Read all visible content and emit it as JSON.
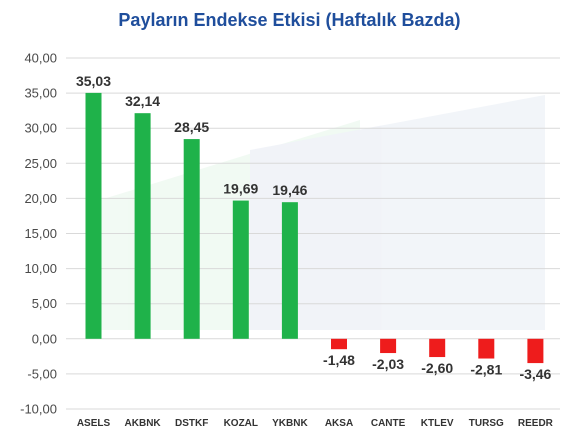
{
  "chart_data": {
    "type": "bar",
    "title": "Payların Endekse Etkisi (Haftalık Bazda)",
    "xlabel": "",
    "ylabel": "",
    "ylim": [
      -10,
      40
    ],
    "yticks": [
      "40,00",
      "35,00",
      "30,00",
      "25,00",
      "20,00",
      "15,00",
      "10,00",
      "5,00",
      "0,00",
      "-5,00",
      "-10,00"
    ],
    "ytick_values": [
      40,
      35,
      30,
      25,
      20,
      15,
      10,
      5,
      0,
      -5,
      -10
    ],
    "grid": true,
    "legend": "none",
    "categories": [
      "ASELS",
      "AKBNK",
      "DSTKF",
      "KOZAL",
      "YKBNK",
      "AKSA",
      "CANTE",
      "KTLEV",
      "TURSG",
      "REEDR"
    ],
    "values": [
      35.03,
      32.14,
      28.45,
      19.69,
      19.46,
      -1.48,
      -2.03,
      -2.6,
      -2.81,
      -3.46
    ],
    "value_labels": [
      "35,03",
      "32,14",
      "28,45",
      "19,69",
      "19,46",
      "-1,48",
      "-2,03",
      "-2,60",
      "-2,81",
      "-3,46"
    ],
    "colors": {
      "positive": "#1fb24a",
      "negative": "#ee1c1c",
      "title": "#1f4e9c",
      "grid": "#d9d9d9"
    }
  }
}
